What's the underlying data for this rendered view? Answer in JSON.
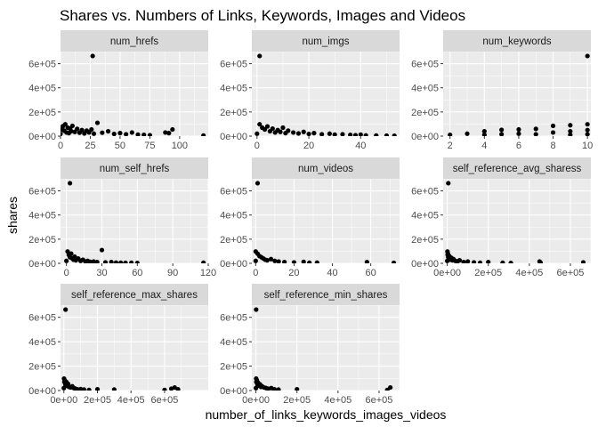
{
  "chart_data": {
    "type": "scatter",
    "title": "Shares vs. Numbers of Links, Keywords, Images and Videos",
    "xlabel": "number_of_links_keywords_images_videos",
    "ylabel": "shares",
    "ylim": [
      0,
      700000
    ],
    "y_ticks": [
      {
        "value": 0,
        "label": "0e+00"
      },
      {
        "value": 200000,
        "label": "2e+05"
      },
      {
        "value": 400000,
        "label": "4e+05"
      },
      {
        "value": 600000,
        "label": "6e+05"
      }
    ],
    "grid": true,
    "colors": {
      "panel_bg": "#ebebeb",
      "strip_bg": "#d9d9d9",
      "grid": "#ffffff",
      "points": "#000000"
    },
    "panels": [
      {
        "label": "num_hrefs",
        "xlim": [
          0,
          124
        ],
        "x_ticks": [
          {
            "value": 0,
            "label": "0"
          },
          {
            "value": 25,
            "label": "25"
          },
          {
            "value": 50,
            "label": "50"
          },
          {
            "value": 75,
            "label": "75"
          },
          {
            "value": 100,
            "label": "100"
          }
        ],
        "points": [
          [
            27,
            663600
          ],
          [
            0,
            18000
          ],
          [
            1,
            55000
          ],
          [
            2,
            82000
          ],
          [
            3,
            45000
          ],
          [
            4,
            98000
          ],
          [
            5,
            30000
          ],
          [
            6,
            70000
          ],
          [
            7,
            25000
          ],
          [
            8,
            62000
          ],
          [
            9,
            40000
          ],
          [
            10,
            85000
          ],
          [
            12,
            35000
          ],
          [
            14,
            60000
          ],
          [
            16,
            28000
          ],
          [
            18,
            50000
          ],
          [
            20,
            22000
          ],
          [
            22,
            45000
          ],
          [
            24,
            30000
          ],
          [
            26,
            55000
          ],
          [
            28,
            20000
          ],
          [
            31,
            110000
          ],
          [
            35,
            28000
          ],
          [
            40,
            40000
          ],
          [
            45,
            18000
          ],
          [
            50,
            25000
          ],
          [
            55,
            15000
          ],
          [
            60,
            30000
          ],
          [
            65,
            12000
          ],
          [
            70,
            10000
          ],
          [
            75,
            8000
          ],
          [
            88,
            30000
          ],
          [
            91,
            25000
          ],
          [
            94,
            55000
          ],
          [
            120,
            5000
          ]
        ]
      },
      {
        "label": "num_imgs",
        "xlim": [
          -2,
          55
        ],
        "x_ticks": [
          {
            "value": 0,
            "label": "0"
          },
          {
            "value": 20,
            "label": "20"
          },
          {
            "value": 40,
            "label": "40"
          }
        ],
        "points": [
          [
            1,
            663600
          ],
          [
            0,
            20000
          ],
          [
            1,
            98000
          ],
          [
            2,
            70000
          ],
          [
            3,
            55000
          ],
          [
            4,
            80000
          ],
          [
            5,
            40000
          ],
          [
            6,
            62000
          ],
          [
            7,
            30000
          ],
          [
            8,
            50000
          ],
          [
            9,
            35000
          ],
          [
            10,
            70000
          ],
          [
            11,
            25000
          ],
          [
            12,
            45000
          ],
          [
            14,
            30000
          ],
          [
            16,
            22000
          ],
          [
            18,
            35000
          ],
          [
            20,
            18000
          ],
          [
            22,
            25000
          ],
          [
            25,
            15000
          ],
          [
            28,
            20000
          ],
          [
            30,
            12000
          ],
          [
            33,
            15000
          ],
          [
            36,
            10000
          ],
          [
            38,
            8000
          ],
          [
            40,
            12000
          ],
          [
            42,
            6000
          ],
          [
            46,
            5000
          ],
          [
            50,
            4000
          ],
          [
            53,
            3000
          ]
        ]
      },
      {
        "label": "num_keywords",
        "xlim": [
          1.6,
          10.2
        ],
        "x_ticks": [
          {
            "value": 2,
            "label": "2"
          },
          {
            "value": 4,
            "label": "4"
          },
          {
            "value": 6,
            "label": "6"
          },
          {
            "value": 8,
            "label": "8"
          },
          {
            "value": 10,
            "label": "10"
          }
        ],
        "points": [
          [
            10,
            663600
          ],
          [
            2,
            10000
          ],
          [
            3,
            20000
          ],
          [
            4,
            40000
          ],
          [
            4,
            10000
          ],
          [
            5,
            52000
          ],
          [
            5,
            15000
          ],
          [
            6,
            55000
          ],
          [
            6,
            20000
          ],
          [
            7,
            60000
          ],
          [
            7,
            15000
          ],
          [
            8,
            85000
          ],
          [
            8,
            30000
          ],
          [
            9,
            90000
          ],
          [
            9,
            40000
          ],
          [
            9,
            10000
          ],
          [
            10,
            98000
          ],
          [
            10,
            50000
          ],
          [
            10,
            15000
          ]
        ]
      },
      {
        "label": "num_self_hrefs",
        "xlim": [
          -5,
          120
        ],
        "x_ticks": [
          {
            "value": 0,
            "label": "0"
          },
          {
            "value": 30,
            "label": "30"
          },
          {
            "value": 60,
            "label": "60"
          },
          {
            "value": 90,
            "label": "90"
          },
          {
            "value": 120,
            "label": "120"
          }
        ],
        "points": [
          [
            3,
            663600
          ],
          [
            0,
            20000
          ],
          [
            1,
            98000
          ],
          [
            2,
            70000
          ],
          [
            3,
            50000
          ],
          [
            4,
            80000
          ],
          [
            5,
            40000
          ],
          [
            6,
            30000
          ],
          [
            7,
            55000
          ],
          [
            8,
            25000
          ],
          [
            10,
            40000
          ],
          [
            12,
            20000
          ],
          [
            14,
            30000
          ],
          [
            16,
            15000
          ],
          [
            18,
            20000
          ],
          [
            20,
            12000
          ],
          [
            23,
            15000
          ],
          [
            26,
            10000
          ],
          [
            30,
            110000
          ],
          [
            33,
            8000
          ],
          [
            38,
            10000
          ],
          [
            42,
            6000
          ],
          [
            46,
            5000
          ],
          [
            50,
            4000
          ],
          [
            55,
            5000
          ],
          [
            60,
            3000
          ],
          [
            116,
            5000
          ]
        ]
      },
      {
        "label": "num_videos",
        "xlim": [
          -2,
          75
        ],
        "x_ticks": [
          {
            "value": 0,
            "label": "0"
          },
          {
            "value": 20,
            "label": "20"
          },
          {
            "value": 40,
            "label": "40"
          },
          {
            "value": 60,
            "label": "60"
          }
        ],
        "points": [
          [
            1,
            663600
          ],
          [
            0,
            20000
          ],
          [
            0,
            98000
          ],
          [
            1,
            80000
          ],
          [
            2,
            60000
          ],
          [
            3,
            50000
          ],
          [
            4,
            40000
          ],
          [
            5,
            30000
          ],
          [
            6,
            25000
          ],
          [
            8,
            35000
          ],
          [
            10,
            20000
          ],
          [
            12,
            15000
          ],
          [
            15,
            10000
          ],
          [
            20,
            8000
          ],
          [
            25,
            12000
          ],
          [
            28,
            5000
          ],
          [
            32,
            6000
          ],
          [
            58,
            10000
          ],
          [
            72,
            4000
          ]
        ]
      },
      {
        "label": "self_reference_avg_sharess",
        "xlim": [
          -20000,
          700000
        ],
        "x_ticks": [
          {
            "value": 0,
            "label": "0e+00"
          },
          {
            "value": 200000,
            "label": "2e+05"
          },
          {
            "value": 400000,
            "label": "4e+05"
          },
          {
            "value": 600000,
            "label": "6e+05"
          }
        ],
        "points": [
          [
            5000,
            663600
          ],
          [
            0,
            20000
          ],
          [
            1000,
            98000
          ],
          [
            2000,
            70000
          ],
          [
            3000,
            80000
          ],
          [
            5000,
            50000
          ],
          [
            8000,
            40000
          ],
          [
            10000,
            60000
          ],
          [
            15000,
            30000
          ],
          [
            20000,
            45000
          ],
          [
            25000,
            25000
          ],
          [
            30000,
            35000
          ],
          [
            40000,
            20000
          ],
          [
            50000,
            15000
          ],
          [
            60000,
            25000
          ],
          [
            80000,
            10000
          ],
          [
            100000,
            15000
          ],
          [
            130000,
            8000
          ],
          [
            160000,
            5000
          ],
          [
            200000,
            10000
          ],
          [
            270000,
            5000
          ],
          [
            310000,
            3000
          ],
          [
            450000,
            15000
          ],
          [
            455000,
            5000
          ],
          [
            663000,
            8000
          ]
        ]
      },
      {
        "label": "self_reference_max_shares",
        "xlim": [
          -20000,
          860000
        ],
        "x_ticks": [
          {
            "value": 0,
            "label": "0e+00"
          },
          {
            "value": 200000,
            "label": "2e+05"
          },
          {
            "value": 400000,
            "label": "4e+05"
          },
          {
            "value": 600000,
            "label": "6e+05"
          }
        ],
        "points": [
          [
            10000,
            663600
          ],
          [
            0,
            20000
          ],
          [
            1000,
            98000
          ],
          [
            3000,
            70000
          ],
          [
            5000,
            85000
          ],
          [
            8000,
            60000
          ],
          [
            10000,
            45000
          ],
          [
            15000,
            70000
          ],
          [
            20000,
            40000
          ],
          [
            25000,
            55000
          ],
          [
            30000,
            30000
          ],
          [
            40000,
            25000
          ],
          [
            50000,
            35000
          ],
          [
            60000,
            20000
          ],
          [
            70000,
            15000
          ],
          [
            80000,
            10000
          ],
          [
            100000,
            12000
          ],
          [
            120000,
            8000
          ],
          [
            150000,
            5000
          ],
          [
            200000,
            10000
          ],
          [
            300000,
            8000
          ],
          [
            600000,
            5000
          ],
          [
            640000,
            15000
          ],
          [
            660000,
            25000
          ],
          [
            680000,
            10000
          ]
        ]
      },
      {
        "label": "self_reference_min_shares",
        "xlim": [
          -20000,
          700000
        ],
        "x_ticks": [
          {
            "value": 0,
            "label": "0e+00"
          },
          {
            "value": 200000,
            "label": "2e+05"
          },
          {
            "value": 400000,
            "label": "4e+05"
          },
          {
            "value": 600000,
            "label": "6e+05"
          }
        ],
        "points": [
          [
            1000,
            663600
          ],
          [
            0,
            20000
          ],
          [
            1000,
            98000
          ],
          [
            2000,
            70000
          ],
          [
            4000,
            85000
          ],
          [
            6000,
            60000
          ],
          [
            8000,
            45000
          ],
          [
            10000,
            65000
          ],
          [
            15000,
            40000
          ],
          [
            20000,
            50000
          ],
          [
            25000,
            30000
          ],
          [
            30000,
            35000
          ],
          [
            40000,
            25000
          ],
          [
            50000,
            20000
          ],
          [
            60000,
            15000
          ],
          [
            75000,
            20000
          ],
          [
            90000,
            10000
          ],
          [
            110000,
            8000
          ],
          [
            200000,
            10000
          ],
          [
            640000,
            5000
          ],
          [
            655000,
            25000
          ]
        ]
      }
    ]
  }
}
